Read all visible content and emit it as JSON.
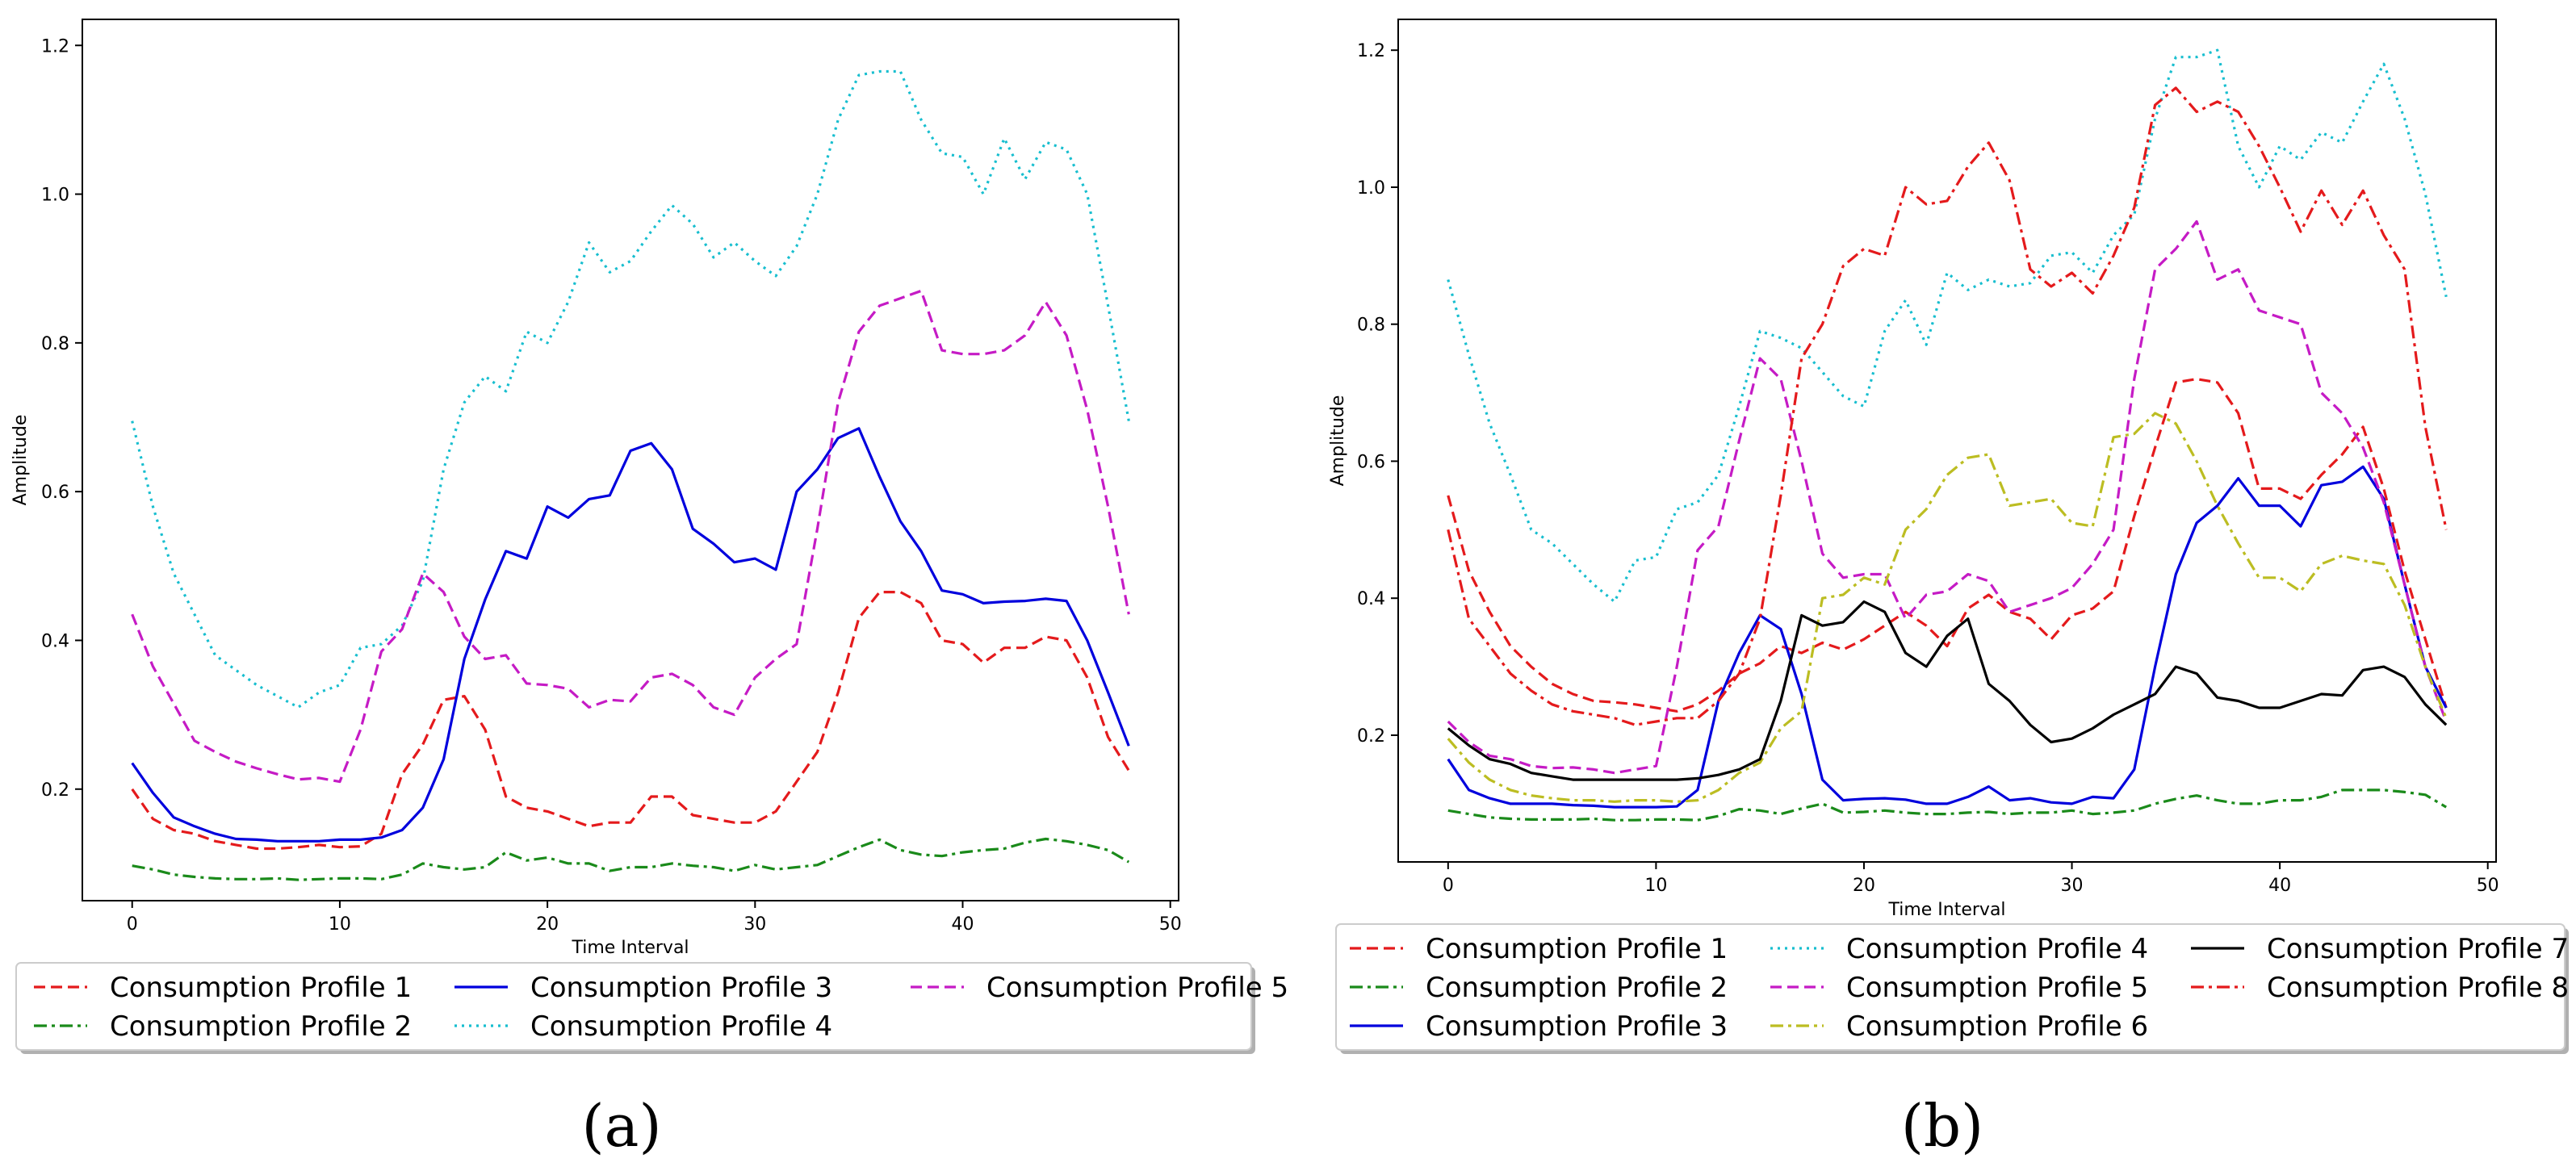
{
  "chart_data": [
    {
      "type": "line",
      "panel_label": "(a)",
      "title": "",
      "xlabel": "Time Interval",
      "ylabel": "Amplitude",
      "xlim": [
        -2.4,
        50.4
      ],
      "ylim": [
        0.05,
        1.235
      ],
      "xticks": [
        0,
        10,
        20,
        30,
        40,
        50
      ],
      "xtick_labels": [
        "0",
        "10",
        "20",
        "30",
        "40",
        "50"
      ],
      "yticks": [
        0.2,
        0.4,
        0.6,
        0.8,
        1.0,
        1.2
      ],
      "ytick_labels": [
        "0.2",
        "0.4",
        "0.6",
        "0.8",
        "1.0",
        "1.2"
      ],
      "grid": false,
      "legend_position": "below",
      "legend_columns": 3,
      "x": [
        0,
        1,
        2,
        3,
        4,
        5,
        6,
        7,
        8,
        9,
        10,
        11,
        12,
        13,
        14,
        15,
        16,
        17,
        18,
        19,
        20,
        21,
        22,
        23,
        24,
        25,
        26,
        27,
        28,
        29,
        30,
        31,
        32,
        33,
        34,
        35,
        36,
        37,
        38,
        39,
        40,
        41,
        42,
        43,
        44,
        45,
        46,
        47,
        48
      ],
      "series": [
        {
          "name": "Consumption Profile 1",
          "color": "#e41a1c",
          "dash": "dashed",
          "values": [
            0.2,
            0.16,
            0.145,
            0.14,
            0.13,
            0.125,
            0.12,
            0.12,
            0.122,
            0.125,
            0.122,
            0.123,
            0.14,
            0.22,
            0.26,
            0.32,
            0.325,
            0.28,
            0.19,
            0.175,
            0.17,
            0.16,
            0.15,
            0.155,
            0.155,
            0.19,
            0.19,
            0.165,
            0.16,
            0.155,
            0.155,
            0.17,
            0.21,
            0.25,
            0.33,
            0.43,
            0.465,
            0.465,
            0.45,
            0.4,
            0.395,
            0.37,
            0.39,
            0.39,
            0.405,
            0.4,
            0.35,
            0.27,
            0.225
          ]
        },
        {
          "name": "Consumption Profile 2",
          "color": "#1a8a1a",
          "dash": "dashdot",
          "values": [
            0.097,
            0.092,
            0.085,
            0.082,
            0.08,
            0.079,
            0.079,
            0.08,
            0.078,
            0.079,
            0.08,
            0.08,
            0.079,
            0.085,
            0.1,
            0.095,
            0.092,
            0.095,
            0.115,
            0.104,
            0.108,
            0.1,
            0.1,
            0.09,
            0.095,
            0.095,
            0.1,
            0.097,
            0.095,
            0.09,
            0.098,
            0.092,
            0.095,
            0.098,
            0.11,
            0.122,
            0.132,
            0.118,
            0.112,
            0.11,
            0.115,
            0.118,
            0.12,
            0.128,
            0.133,
            0.13,
            0.125,
            0.118,
            0.102
          ]
        },
        {
          "name": "Consumption Profile 3",
          "color": "#0000dd",
          "dash": "solid",
          "values": [
            0.235,
            0.195,
            0.162,
            0.15,
            0.14,
            0.133,
            0.132,
            0.13,
            0.13,
            0.13,
            0.132,
            0.132,
            0.135,
            0.145,
            0.175,
            0.24,
            0.375,
            0.455,
            0.52,
            0.51,
            0.58,
            0.565,
            0.59,
            0.595,
            0.655,
            0.665,
            0.63,
            0.55,
            0.53,
            0.505,
            0.51,
            0.495,
            0.6,
            0.63,
            0.672,
            0.685,
            0.62,
            0.56,
            0.52,
            0.467,
            0.462,
            0.45,
            0.452,
            0.453,
            0.456,
            0.453,
            0.4,
            0.33,
            0.258
          ]
        },
        {
          "name": "Consumption Profile 4",
          "color": "#17becf",
          "dash": "dotted",
          "values": [
            0.695,
            0.58,
            0.49,
            0.435,
            0.38,
            0.36,
            0.34,
            0.325,
            0.31,
            0.33,
            0.34,
            0.39,
            0.395,
            0.42,
            0.48,
            0.63,
            0.72,
            0.755,
            0.735,
            0.815,
            0.8,
            0.855,
            0.935,
            0.895,
            0.91,
            0.95,
            0.985,
            0.96,
            0.915,
            0.935,
            0.91,
            0.89,
            0.93,
            1.0,
            1.1,
            1.16,
            1.165,
            1.165,
            1.1,
            1.055,
            1.05,
            1.0,
            1.075,
            1.02,
            1.07,
            1.06,
            1.0,
            0.85,
            0.695
          ]
        },
        {
          "name": "Consumption Profile 5",
          "color": "#c51bc5",
          "dash": "dashed",
          "values": [
            0.435,
            0.365,
            0.315,
            0.265,
            0.25,
            0.237,
            0.228,
            0.22,
            0.213,
            0.215,
            0.21,
            0.28,
            0.385,
            0.415,
            0.49,
            0.465,
            0.405,
            0.375,
            0.38,
            0.342,
            0.34,
            0.335,
            0.31,
            0.32,
            0.318,
            0.35,
            0.355,
            0.34,
            0.31,
            0.3,
            0.35,
            0.375,
            0.395,
            0.55,
            0.72,
            0.815,
            0.85,
            0.86,
            0.87,
            0.79,
            0.785,
            0.785,
            0.79,
            0.81,
            0.855,
            0.81,
            0.71,
            0.58,
            0.435
          ]
        }
      ]
    },
    {
      "type": "line",
      "panel_label": "(b)",
      "title": "",
      "xlabel": "Time Interval",
      "ylabel": "Amplitude",
      "xlim": [
        -2.4,
        50.4
      ],
      "ylim": [
        0.015,
        1.245
      ],
      "xticks": [
        0,
        10,
        20,
        30,
        40,
        50
      ],
      "xtick_labels": [
        "0",
        "10",
        "20",
        "30",
        "40",
        "50"
      ],
      "yticks": [
        0.2,
        0.4,
        0.6,
        0.8,
        1.0,
        1.2
      ],
      "ytick_labels": [
        "0.2",
        "0.4",
        "0.6",
        "0.8",
        "1.0",
        "1.2"
      ],
      "grid": false,
      "legend_position": "below",
      "legend_columns": 3,
      "x": [
        0,
        1,
        2,
        3,
        4,
        5,
        6,
        7,
        8,
        9,
        10,
        11,
        12,
        13,
        14,
        15,
        16,
        17,
        18,
        19,
        20,
        21,
        22,
        23,
        24,
        25,
        26,
        27,
        28,
        29,
        30,
        31,
        32,
        33,
        34,
        35,
        36,
        37,
        38,
        39,
        40,
        41,
        42,
        43,
        44,
        45,
        46,
        47,
        48
      ],
      "series": [
        {
          "name": "Consumption Profile 1",
          "color": "#e41a1c",
          "dash": "dashed",
          "values": [
            0.55,
            0.44,
            0.38,
            0.33,
            0.3,
            0.275,
            0.26,
            0.25,
            0.248,
            0.245,
            0.24,
            0.235,
            0.245,
            0.265,
            0.29,
            0.305,
            0.33,
            0.32,
            0.335,
            0.325,
            0.34,
            0.36,
            0.38,
            0.36,
            0.33,
            0.385,
            0.405,
            0.38,
            0.37,
            0.34,
            0.375,
            0.385,
            0.41,
            0.52,
            0.62,
            0.715,
            0.72,
            0.715,
            0.67,
            0.56,
            0.56,
            0.545,
            0.58,
            0.61,
            0.65,
            0.56,
            0.44,
            0.34,
            0.24
          ]
        },
        {
          "name": "Consumption Profile 2",
          "color": "#1a8a1a",
          "dash": "dashdot",
          "values": [
            0.09,
            0.085,
            0.08,
            0.078,
            0.077,
            0.077,
            0.077,
            0.078,
            0.076,
            0.076,
            0.077,
            0.077,
            0.076,
            0.082,
            0.092,
            0.09,
            0.085,
            0.093,
            0.1,
            0.087,
            0.088,
            0.09,
            0.087,
            0.085,
            0.085,
            0.087,
            0.088,
            0.085,
            0.087,
            0.087,
            0.09,
            0.085,
            0.087,
            0.09,
            0.1,
            0.107,
            0.112,
            0.105,
            0.1,
            0.1,
            0.105,
            0.105,
            0.11,
            0.12,
            0.12,
            0.12,
            0.117,
            0.113,
            0.095
          ]
        },
        {
          "name": "Consumption Profile 3",
          "color": "#0000dd",
          "dash": "solid",
          "values": [
            0.165,
            0.12,
            0.108,
            0.1,
            0.1,
            0.1,
            0.098,
            0.097,
            0.095,
            0.095,
            0.095,
            0.096,
            0.12,
            0.25,
            0.32,
            0.375,
            0.355,
            0.26,
            0.135,
            0.105,
            0.107,
            0.108,
            0.106,
            0.1,
            0.1,
            0.11,
            0.125,
            0.105,
            0.108,
            0.102,
            0.1,
            0.11,
            0.108,
            0.15,
            0.3,
            0.435,
            0.51,
            0.535,
            0.575,
            0.535,
            0.535,
            0.505,
            0.565,
            0.57,
            0.592,
            0.545,
            0.42,
            0.3,
            0.24
          ]
        },
        {
          "name": "Consumption Profile 4",
          "color": "#17becf",
          "dash": "dotted",
          "values": [
            0.865,
            0.755,
            0.655,
            0.58,
            0.5,
            0.48,
            0.45,
            0.42,
            0.395,
            0.455,
            0.46,
            0.53,
            0.54,
            0.58,
            0.68,
            0.79,
            0.78,
            0.765,
            0.73,
            0.695,
            0.68,
            0.79,
            0.835,
            0.77,
            0.875,
            0.85,
            0.865,
            0.855,
            0.86,
            0.9,
            0.905,
            0.875,
            0.93,
            0.96,
            1.1,
            1.19,
            1.19,
            1.2,
            1.06,
            1.0,
            1.06,
            1.04,
            1.08,
            1.065,
            1.125,
            1.18,
            1.1,
            0.99,
            0.84
          ]
        },
        {
          "name": "Consumption Profile 5",
          "color": "#c51bc5",
          "dash": "dashed",
          "values": [
            0.22,
            0.19,
            0.17,
            0.165,
            0.155,
            0.152,
            0.153,
            0.15,
            0.145,
            0.15,
            0.155,
            0.3,
            0.47,
            0.505,
            0.63,
            0.75,
            0.72,
            0.6,
            0.465,
            0.43,
            0.435,
            0.435,
            0.37,
            0.405,
            0.41,
            0.435,
            0.425,
            0.38,
            0.39,
            0.4,
            0.415,
            0.45,
            0.5,
            0.72,
            0.88,
            0.91,
            0.95,
            0.865,
            0.88,
            0.82,
            0.81,
            0.8,
            0.7,
            0.67,
            0.62,
            0.54,
            0.42,
            0.3,
            0.22
          ]
        },
        {
          "name": "Consumption Profile 6",
          "color": "#bcbd22",
          "dash": "dashdot",
          "values": [
            0.195,
            0.16,
            0.135,
            0.12,
            0.112,
            0.108,
            0.105,
            0.105,
            0.103,
            0.105,
            0.105,
            0.103,
            0.105,
            0.12,
            0.145,
            0.16,
            0.21,
            0.235,
            0.4,
            0.405,
            0.43,
            0.42,
            0.5,
            0.53,
            0.58,
            0.605,
            0.61,
            0.535,
            0.54,
            0.545,
            0.51,
            0.505,
            0.635,
            0.64,
            0.67,
            0.655,
            0.6,
            0.535,
            0.48,
            0.43,
            0.43,
            0.41,
            0.45,
            0.462,
            0.455,
            0.45,
            0.39,
            0.3,
            0.225
          ]
        },
        {
          "name": "Consumption Profile 7",
          "color": "#000000",
          "dash": "solid",
          "values": [
            0.21,
            0.185,
            0.165,
            0.158,
            0.145,
            0.14,
            0.135,
            0.135,
            0.135,
            0.135,
            0.135,
            0.135,
            0.137,
            0.142,
            0.15,
            0.165,
            0.25,
            0.375,
            0.36,
            0.365,
            0.395,
            0.38,
            0.32,
            0.3,
            0.345,
            0.37,
            0.275,
            0.25,
            0.215,
            0.19,
            0.195,
            0.21,
            0.23,
            0.245,
            0.26,
            0.3,
            0.29,
            0.255,
            0.25,
            0.24,
            0.24,
            0.25,
            0.26,
            0.258,
            0.295,
            0.3,
            0.285,
            0.245,
            0.215
          ]
        },
        {
          "name": "Consumption Profile 8",
          "color": "#e41a1c",
          "dash": "dashdot",
          "values": [
            0.5,
            0.37,
            0.33,
            0.29,
            0.265,
            0.245,
            0.235,
            0.23,
            0.225,
            0.215,
            0.22,
            0.225,
            0.225,
            0.25,
            0.29,
            0.37,
            0.55,
            0.75,
            0.8,
            0.885,
            0.91,
            0.9,
            1.0,
            0.975,
            0.98,
            1.03,
            1.065,
            1.01,
            0.88,
            0.855,
            0.875,
            0.845,
            0.9,
            0.97,
            1.12,
            1.145,
            1.11,
            1.125,
            1.11,
            1.06,
            1.0,
            0.935,
            0.995,
            0.945,
            0.995,
            0.93,
            0.88,
            0.65,
            0.5
          ]
        }
      ]
    }
  ]
}
